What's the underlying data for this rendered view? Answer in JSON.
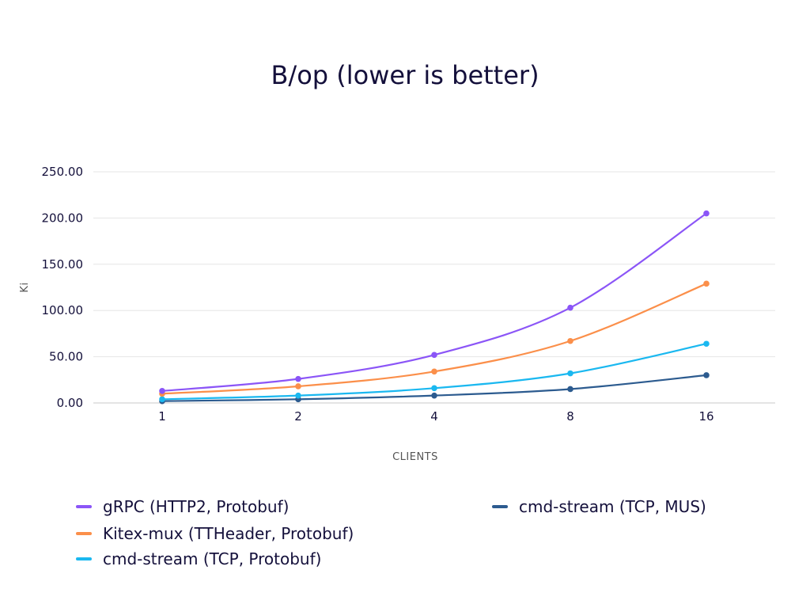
{
  "chart_data": {
    "type": "line",
    "title": "B/op (lower is better)",
    "xlabel": "CLIENTS",
    "ylabel": "Ki",
    "categories": [
      "1",
      "2",
      "4",
      "8",
      "16"
    ],
    "ylim": [
      0,
      250
    ],
    "yticks": [
      "0.00",
      "50.00",
      "100.00",
      "150.00",
      "200.00",
      "250.00"
    ],
    "grid": true,
    "legend_position": "bottom",
    "series": [
      {
        "name": "gRPC (HTTP2, Protobuf)",
        "color": "#8b55f7",
        "values": [
          13,
          26,
          52,
          103,
          205
        ]
      },
      {
        "name": "Kitex-mux (TTHeader, Protobuf)",
        "color": "#fb8f4a",
        "values": [
          10,
          18,
          34,
          67,
          129
        ]
      },
      {
        "name": "cmd-stream (TCP, Protobuf)",
        "color": "#1ab8f0",
        "values": [
          4,
          8,
          16,
          32,
          64
        ]
      },
      {
        "name": "cmd-stream (TCP, MUS)",
        "color": "#2c5b8f",
        "values": [
          2,
          4,
          8,
          15,
          30
        ]
      }
    ]
  }
}
